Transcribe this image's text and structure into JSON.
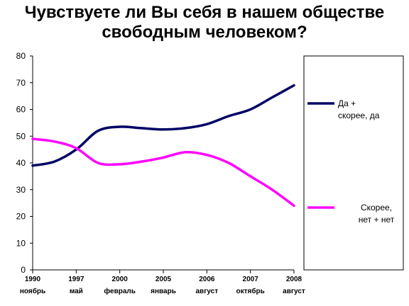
{
  "page": {
    "title_line1": "Чувствуете ли Вы себя в нашем обществе",
    "title_line2": "свободным человеком?"
  },
  "chart_data": {
    "type": "line",
    "title": "Чувствуете ли Вы себя в нашем обществе свободным человеком?",
    "xlabel": "",
    "ylabel": "",
    "ylim": [
      0,
      80
    ],
    "yticks": [
      0,
      10,
      20,
      30,
      40,
      50,
      60,
      70,
      80
    ],
    "grid": false,
    "legend_position": "right",
    "x_tick_labels": [
      {
        "year": "1990",
        "month": "ноябрь"
      },
      {
        "year": "1997",
        "month": "май"
      },
      {
        "year": "2000",
        "month": "февраль"
      },
      {
        "year": "2005",
        "month": "январь"
      },
      {
        "year": "2006",
        "month": "август"
      },
      {
        "year": "2007",
        "month": "октябрь"
      },
      {
        "year": "2008",
        "month": "август"
      }
    ],
    "x": [
      0,
      0.5,
      1,
      1.5,
      2,
      2.5,
      3,
      3.5,
      4,
      4.5,
      5,
      5.5,
      6
    ],
    "series": [
      {
        "name": "Да + скорее, да",
        "legend_lines": [
          "Да +",
          "скорее, да"
        ],
        "color": "#000066",
        "values": [
          39,
          40.5,
          45,
          52,
          53.5,
          53,
          52.5,
          53,
          54.5,
          57.5,
          60,
          64.5,
          69
        ]
      },
      {
        "name": "Скорее, нет + нет",
        "legend_lines": [
          "Скорее,",
          "нет + нет"
        ],
        "color": "#ff00ff",
        "values": [
          49,
          48,
          45.5,
          40,
          39.5,
          40.5,
          42,
          44,
          43,
          40,
          35,
          30,
          24
        ]
      }
    ]
  }
}
